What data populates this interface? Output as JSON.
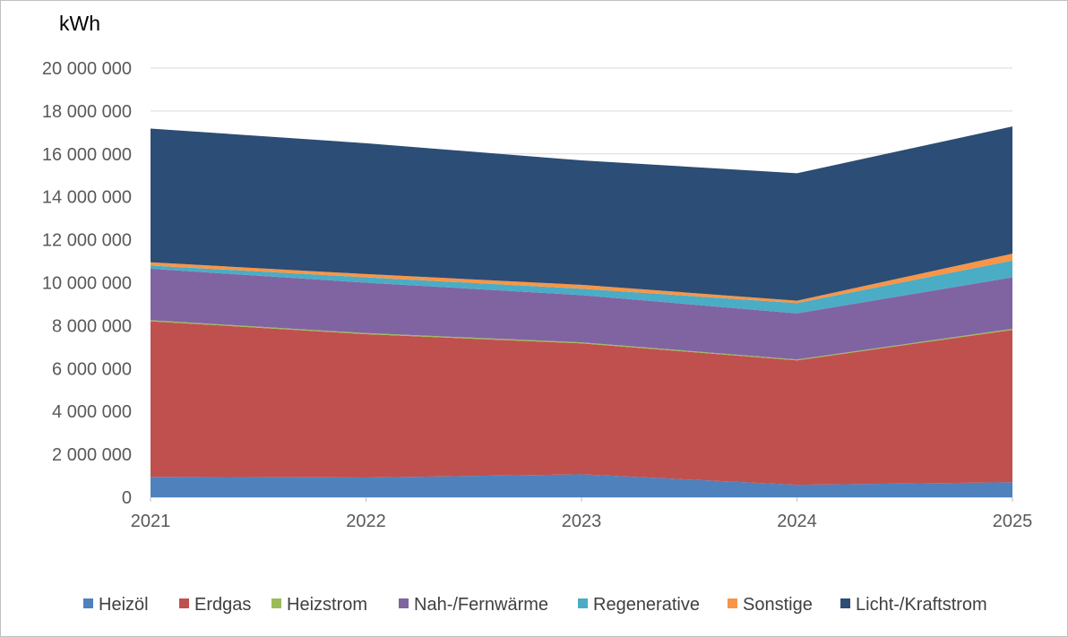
{
  "chart_data": {
    "type": "area",
    "stacked": true,
    "title": "",
    "ylabel": "kWh",
    "xlabel": "",
    "categories": [
      "2021",
      "2022",
      "2023",
      "2024",
      "2025"
    ],
    "ylim": [
      0,
      20000000
    ],
    "yticks": [
      0,
      2000000,
      4000000,
      6000000,
      8000000,
      10000000,
      12000000,
      14000000,
      16000000,
      18000000,
      20000000
    ],
    "ytick_labels": [
      "0",
      "2 000 000",
      "4 000 000",
      "6 000 000",
      "8 000 000",
      "10 000 000",
      "12 000 000",
      "14 000 000",
      "16 000 000",
      "18 000 000",
      "20 000 000"
    ],
    "grid": true,
    "legend_position": "bottom",
    "series": [
      {
        "name": "Heizöl",
        "color": "#4f81bd",
        "values": [
          950000,
          920000,
          1070000,
          580000,
          700000
        ]
      },
      {
        "name": "Erdgas",
        "color": "#c0504d",
        "values": [
          7250000,
          6680000,
          6100000,
          5800000,
          7100000
        ]
      },
      {
        "name": "Heizstrom",
        "color": "#9bbb59",
        "values": [
          50000,
          50000,
          50000,
          40000,
          50000
        ]
      },
      {
        "name": "Nah-/Fernwärme",
        "color": "#8064a2",
        "values": [
          2400000,
          2350000,
          2200000,
          2150000,
          2400000
        ]
      },
      {
        "name": "Regenerative",
        "color": "#4bacc6",
        "values": [
          150000,
          250000,
          300000,
          480000,
          780000
        ]
      },
      {
        "name": "Sonstige",
        "color": "#f79646",
        "values": [
          150000,
          150000,
          180000,
          110000,
          320000
        ]
      },
      {
        "name": "Licht-/Kraftstrom",
        "color": "#2c4d75",
        "values": [
          6230000,
          6100000,
          5800000,
          5940000,
          5930000
        ]
      }
    ]
  }
}
